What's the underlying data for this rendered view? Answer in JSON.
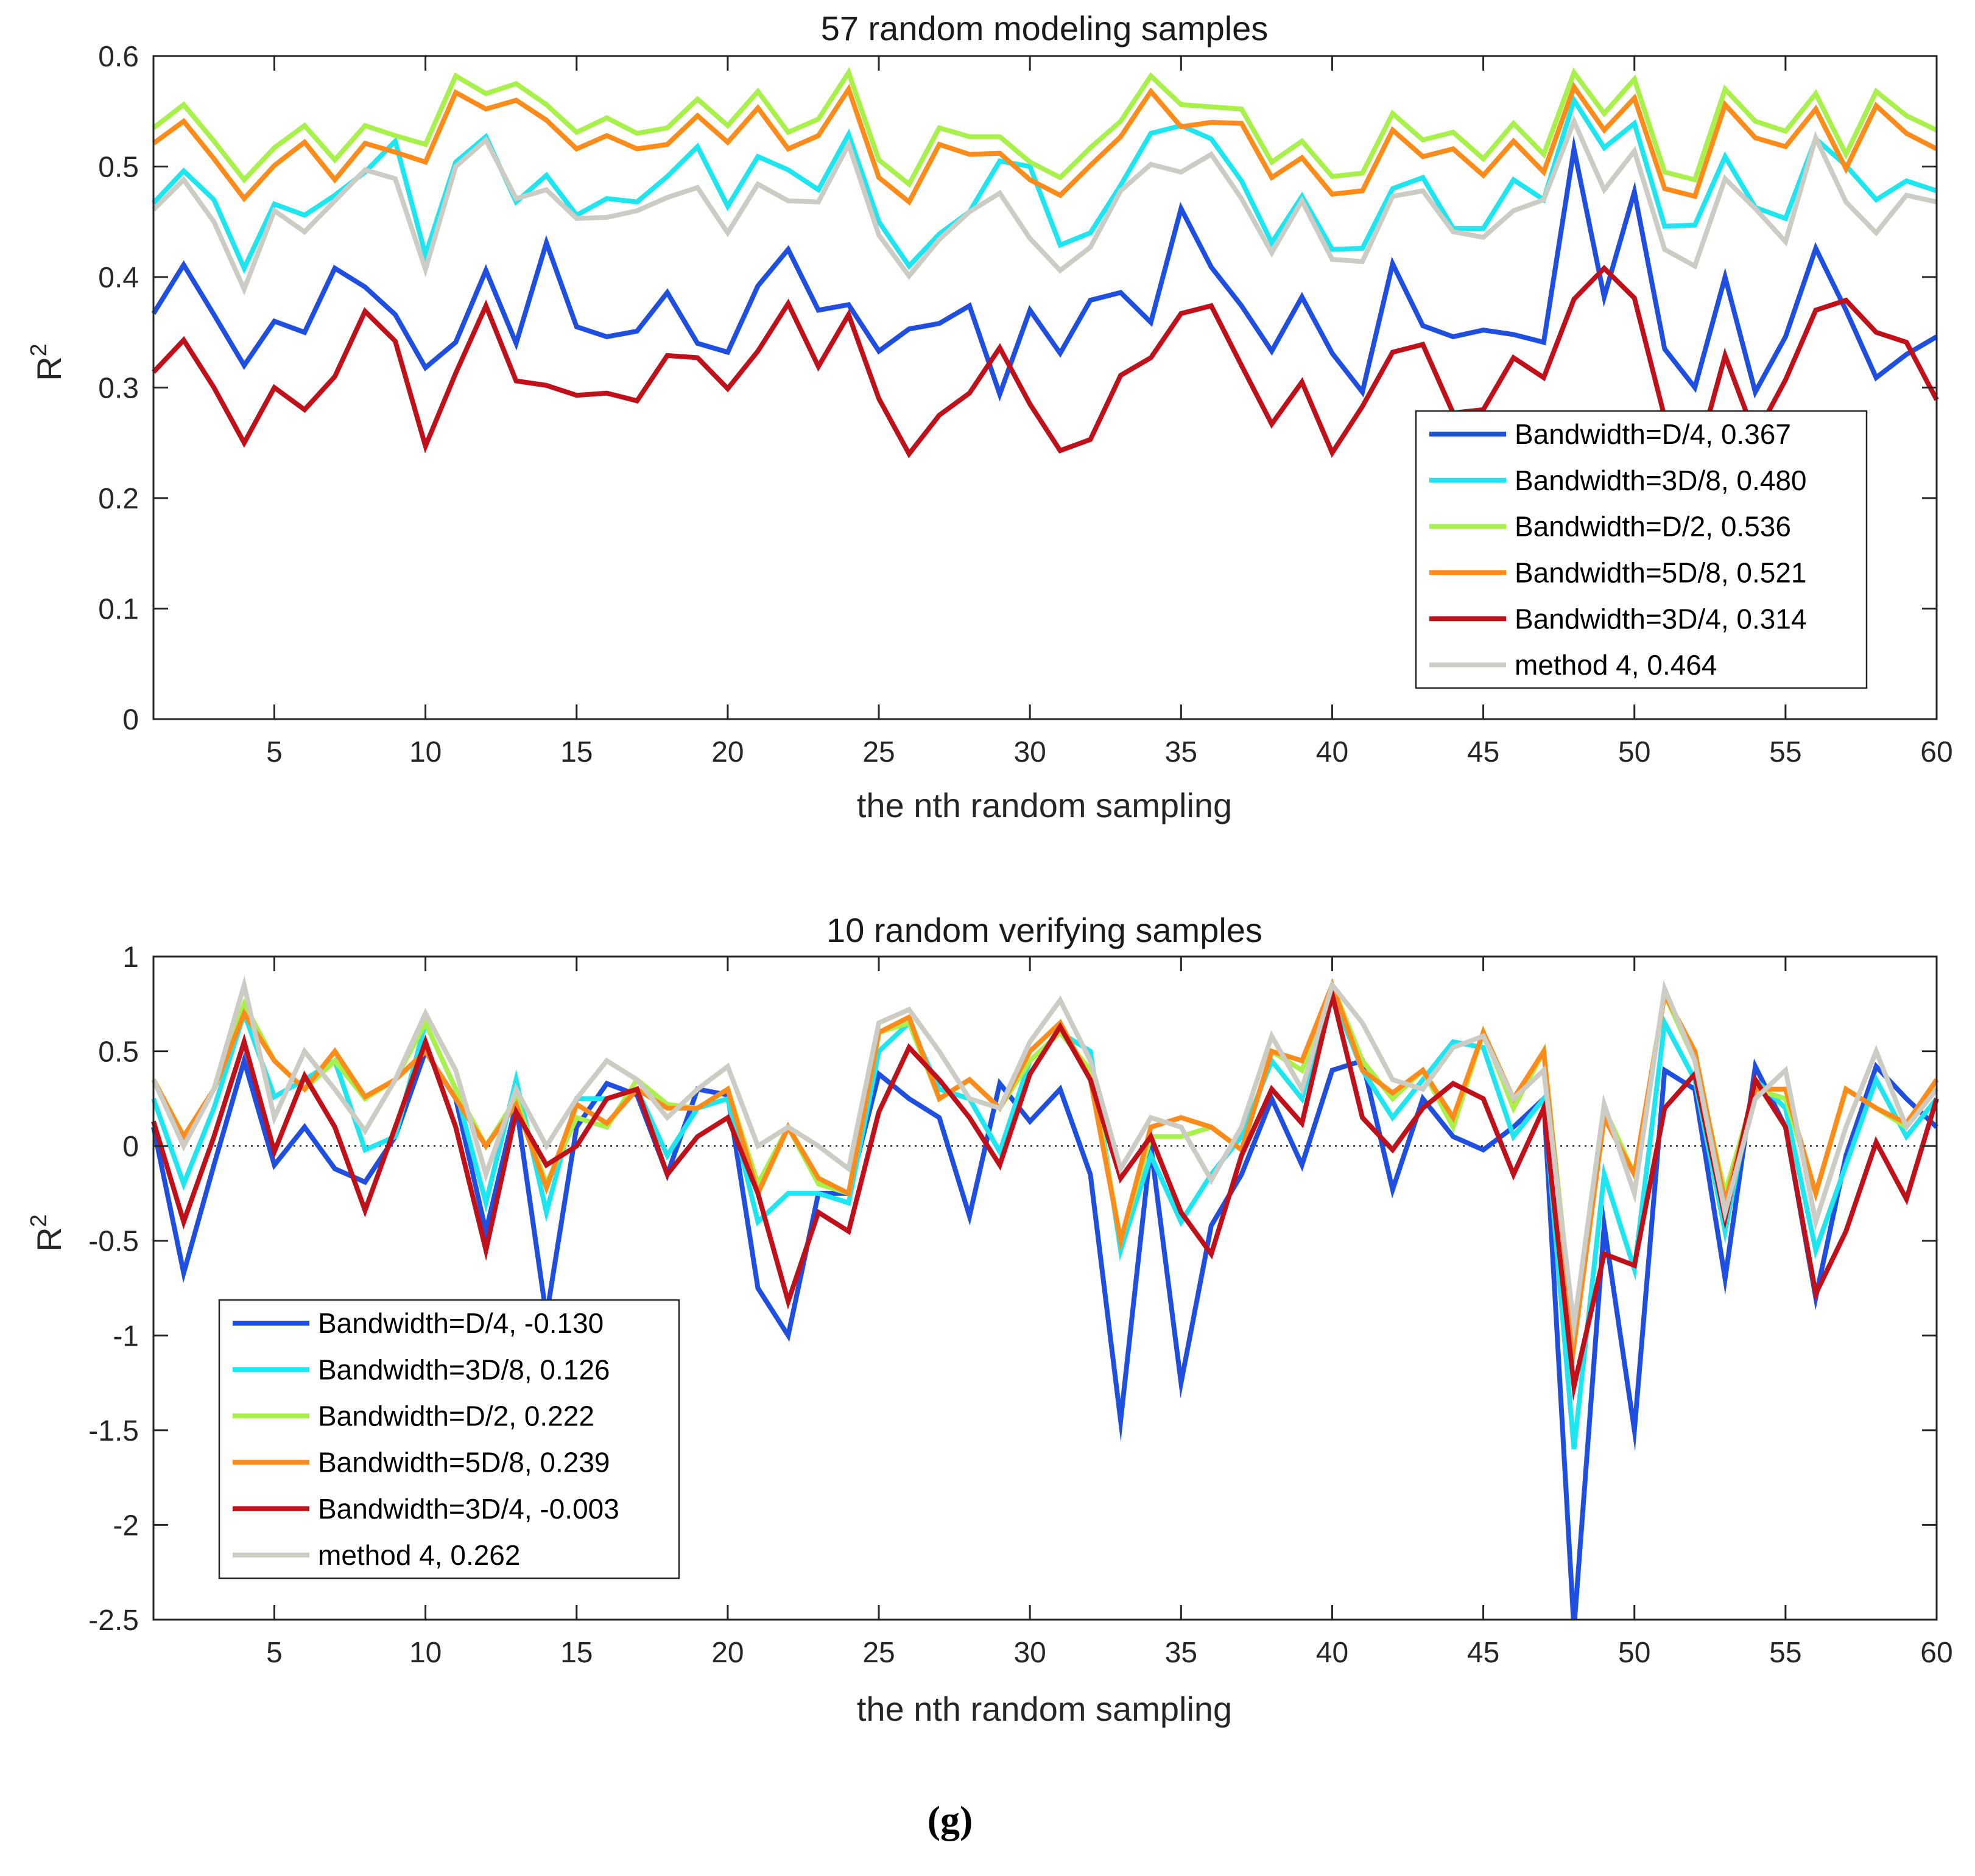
{
  "caption": "(g)",
  "chart_data": [
    {
      "type": "line",
      "title": "57 random modeling samples",
      "xlabel": "the nth random sampling",
      "ylabel": "R",
      "ylabel_sup": "2",
      "xlim": [
        1,
        60
      ],
      "ylim": [
        0,
        0.6
      ],
      "xticks": [
        5,
        10,
        15,
        20,
        25,
        30,
        35,
        40,
        45,
        50,
        55,
        60
      ],
      "yticks": [
        0,
        0.1,
        0.2,
        0.3,
        0.4,
        0.5,
        0.6
      ],
      "grid": false,
      "zero_line": false,
      "legend_position": "bottom-right",
      "series": [
        {
          "name": "Bandwidth=D/4, 0.367",
          "color": "#1f4fe0",
          "values": [
            0.367,
            0.411,
            0.366,
            0.32,
            0.36,
            0.35,
            0.408,
            0.391,
            0.366,
            0.318,
            0.341,
            0.406,
            0.34,
            0.431,
            0.355,
            0.346,
            0.351,
            0.386,
            0.34,
            0.332,
            0.392,
            0.425,
            0.37,
            0.375,
            0.333,
            0.353,
            0.358,
            0.374,
            0.294,
            0.37,
            0.331,
            0.379,
            0.386,
            0.359,
            0.462,
            0.409,
            0.374,
            0.333,
            0.382,
            0.331,
            0.296,
            0.412,
            0.356,
            0.346,
            0.352,
            0.348,
            0.341,
            0.516,
            0.382,
            0.477,
            0.335,
            0.3,
            0.4,
            0.296,
            0.346,
            0.426,
            0.37,
            0.309,
            0.33,
            0.346
          ]
        },
        {
          "name": "Bandwidth=3D/8, 0.480",
          "color": "#1ee6f0",
          "values": [
            0.467,
            0.496,
            0.47,
            0.408,
            0.466,
            0.456,
            0.474,
            0.495,
            0.523,
            0.42,
            0.504,
            0.527,
            0.468,
            0.492,
            0.456,
            0.471,
            0.468,
            0.491,
            0.518,
            0.464,
            0.509,
            0.497,
            0.479,
            0.529,
            0.45,
            0.41,
            0.439,
            0.459,
            0.505,
            0.5,
            0.429,
            0.44,
            0.483,
            0.53,
            0.537,
            0.525,
            0.487,
            0.431,
            0.473,
            0.425,
            0.426,
            0.48,
            0.49,
            0.444,
            0.444,
            0.488,
            0.47,
            0.56,
            0.517,
            0.539,
            0.446,
            0.447,
            0.509,
            0.463,
            0.453,
            0.525,
            0.501,
            0.47,
            0.487,
            0.478
          ]
        },
        {
          "name": "Bandwidth=D/2, 0.536",
          "color": "#a8f04a",
          "values": [
            0.535,
            0.556,
            0.523,
            0.488,
            0.517,
            0.537,
            0.506,
            0.537,
            0.528,
            0.52,
            0.582,
            0.566,
            0.575,
            0.556,
            0.531,
            0.544,
            0.53,
            0.535,
            0.561,
            0.537,
            0.568,
            0.531,
            0.543,
            0.585,
            0.506,
            0.484,
            0.535,
            0.527,
            0.527,
            0.504,
            0.49,
            0.517,
            0.541,
            0.582,
            0.556,
            0.554,
            0.552,
            0.504,
            0.523,
            0.491,
            0.494,
            0.548,
            0.524,
            0.531,
            0.507,
            0.539,
            0.511,
            0.585,
            0.548,
            0.579,
            0.495,
            0.488,
            0.57,
            0.541,
            0.532,
            0.566,
            0.511,
            0.568,
            0.546,
            0.533
          ]
        },
        {
          "name": "Bandwidth=5D/8, 0.521",
          "color": "#ff8c1a",
          "values": [
            0.521,
            0.541,
            0.507,
            0.471,
            0.501,
            0.522,
            0.488,
            0.521,
            0.513,
            0.504,
            0.567,
            0.552,
            0.56,
            0.542,
            0.516,
            0.528,
            0.516,
            0.52,
            0.546,
            0.522,
            0.553,
            0.516,
            0.528,
            0.57,
            0.49,
            0.468,
            0.52,
            0.511,
            0.512,
            0.488,
            0.474,
            0.501,
            0.527,
            0.568,
            0.536,
            0.54,
            0.539,
            0.49,
            0.508,
            0.475,
            0.478,
            0.533,
            0.509,
            0.516,
            0.492,
            0.523,
            0.495,
            0.572,
            0.533,
            0.562,
            0.48,
            0.473,
            0.556,
            0.526,
            0.518,
            0.552,
            0.498,
            0.555,
            0.53,
            0.516
          ]
        },
        {
          "name": "Bandwidth=3D/4, 0.314",
          "color": "#c0101a",
          "values": [
            0.314,
            0.343,
            0.3,
            0.25,
            0.3,
            0.28,
            0.31,
            0.369,
            0.342,
            0.247,
            0.313,
            0.374,
            0.306,
            0.302,
            0.293,
            0.295,
            0.288,
            0.329,
            0.327,
            0.299,
            0.333,
            0.376,
            0.319,
            0.366,
            0.29,
            0.24,
            0.275,
            0.295,
            0.336,
            0.285,
            0.243,
            0.253,
            0.311,
            0.327,
            0.367,
            0.374,
            0.32,
            0.267,
            0.305,
            0.241,
            0.283,
            0.332,
            0.339,
            0.277,
            0.28,
            0.327,
            0.309,
            0.38,
            0.408,
            0.381,
            0.273,
            0.229,
            0.329,
            0.256,
            0.307,
            0.37,
            0.379,
            0.35,
            0.341,
            0.289
          ]
        },
        {
          "name": "method 4, 0.464",
          "color": "#cdccc4",
          "values": [
            0.461,
            0.488,
            0.45,
            0.389,
            0.46,
            0.441,
            0.469,
            0.497,
            0.489,
            0.407,
            0.5,
            0.524,
            0.471,
            0.479,
            0.453,
            0.454,
            0.46,
            0.472,
            0.481,
            0.44,
            0.484,
            0.469,
            0.468,
            0.52,
            0.438,
            0.401,
            0.434,
            0.459,
            0.476,
            0.435,
            0.406,
            0.427,
            0.478,
            0.502,
            0.495,
            0.511,
            0.471,
            0.422,
            0.469,
            0.416,
            0.414,
            0.473,
            0.478,
            0.441,
            0.436,
            0.46,
            0.47,
            0.541,
            0.479,
            0.514,
            0.425,
            0.41,
            0.489,
            0.462,
            0.432,
            0.526,
            0.468,
            0.44,
            0.474,
            0.468
          ]
        }
      ]
    },
    {
      "type": "line",
      "title": "10 random verifying samples",
      "xlabel": "the nth random sampling",
      "ylabel": "R",
      "ylabel_sup": "2",
      "xlim": [
        1,
        60
      ],
      "ylim": [
        -2.5,
        1
      ],
      "xticks": [
        5,
        10,
        15,
        20,
        25,
        30,
        35,
        40,
        45,
        50,
        55,
        60
      ],
      "yticks": [
        -2.5,
        -2,
        -1.5,
        -1,
        -0.5,
        0,
        0.5,
        1
      ],
      "grid": false,
      "zero_line": true,
      "legend_position": "bottom-left",
      "series": [
        {
          "name": "Bandwidth=D/4, -0.130",
          "color": "#1f4fe0",
          "values": [
            0.1,
            -0.67,
            -0.1,
            0.45,
            -0.1,
            0.1,
            -0.12,
            -0.19,
            0.05,
            0.5,
            0.25,
            -0.45,
            0.22,
            -0.9,
            0.1,
            0.33,
            0.27,
            -0.15,
            0.3,
            0.27,
            -0.75,
            -1.0,
            -0.25,
            -0.25,
            0.38,
            0.25,
            0.15,
            -0.37,
            0.33,
            0.13,
            0.3,
            -0.15,
            -1.45,
            0.0,
            -1.25,
            -0.42,
            -0.15,
            0.25,
            -0.1,
            0.4,
            0.45,
            -0.23,
            0.25,
            0.05,
            -0.02,
            0.1,
            0.25,
            -2.55,
            -0.42,
            -1.5,
            0.4,
            0.3,
            -0.7,
            0.42,
            0.1,
            -0.8,
            -0.05,
            0.42,
            0.25,
            0.1
          ]
        },
        {
          "name": "Bandwidth=3D/8, 0.126",
          "color": "#1ee6f0",
          "values": [
            0.25,
            -0.2,
            0.2,
            0.7,
            0.26,
            0.35,
            0.45,
            -0.02,
            0.05,
            0.65,
            0.3,
            -0.3,
            0.35,
            -0.35,
            0.25,
            0.25,
            0.3,
            -0.05,
            0.2,
            0.25,
            -0.4,
            -0.25,
            -0.25,
            -0.3,
            0.5,
            0.65,
            0.3,
            0.25,
            -0.03,
            0.45,
            0.6,
            0.5,
            -0.55,
            -0.05,
            -0.4,
            -0.15,
            0.05,
            0.45,
            0.25,
            0.8,
            0.4,
            0.15,
            0.35,
            0.55,
            0.52,
            0.05,
            0.25,
            -1.6,
            -0.15,
            -0.65,
            0.65,
            0.35,
            -0.45,
            0.35,
            0.2,
            -0.55,
            -0.1,
            0.35,
            0.05,
            0.25
          ]
        },
        {
          "name": "Bandwidth=D/2, 0.222",
          "color": "#a8f04a",
          "values": [
            0.35,
            0.05,
            0.3,
            0.75,
            0.45,
            0.3,
            0.45,
            0.25,
            0.35,
            0.65,
            0.3,
            0.0,
            0.25,
            -0.2,
            0.15,
            0.1,
            0.35,
            0.22,
            0.2,
            0.3,
            -0.2,
            0.1,
            -0.2,
            -0.25,
            0.6,
            0.65,
            0.25,
            0.35,
            0.2,
            0.45,
            0.6,
            0.4,
            -0.5,
            0.05,
            0.05,
            0.1,
            -0.02,
            0.5,
            0.4,
            0.85,
            0.45,
            0.25,
            0.4,
            0.1,
            0.6,
            0.2,
            0.5,
            -1.0,
            0.2,
            -0.15,
            0.8,
            0.45,
            -0.25,
            0.3,
            0.25,
            -0.25,
            0.3,
            0.2,
            0.1,
            0.35
          ]
        },
        {
          "name": "Bandwidth=5D/8, 0.239",
          "color": "#ff8c1a",
          "values": [
            0.35,
            0.05,
            0.3,
            0.7,
            0.45,
            0.3,
            0.5,
            0.26,
            0.35,
            0.5,
            0.25,
            0.0,
            0.22,
            -0.22,
            0.22,
            0.12,
            0.3,
            0.2,
            0.2,
            0.3,
            -0.25,
            0.1,
            -0.17,
            -0.25,
            0.6,
            0.68,
            0.25,
            0.35,
            0.2,
            0.5,
            0.65,
            0.35,
            -0.5,
            0.1,
            0.15,
            0.1,
            -0.02,
            0.5,
            0.45,
            0.85,
            0.4,
            0.28,
            0.4,
            0.15,
            0.6,
            0.25,
            0.5,
            -1.05,
            0.15,
            -0.15,
            0.8,
            0.5,
            -0.3,
            0.3,
            0.3,
            -0.25,
            0.3,
            0.2,
            0.12,
            0.35
          ]
        },
        {
          "name": "Bandwidth=3D/4, -0.003",
          "color": "#c0101a",
          "values": [
            0.13,
            -0.4,
            0.05,
            0.55,
            -0.03,
            0.37,
            0.1,
            -0.34,
            0.1,
            0.55,
            0.1,
            -0.55,
            0.18,
            -0.1,
            0.0,
            0.25,
            0.3,
            -0.15,
            0.05,
            0.15,
            -0.25,
            -0.82,
            -0.35,
            -0.45,
            0.18,
            0.52,
            0.35,
            0.15,
            -0.1,
            0.38,
            0.63,
            0.35,
            -0.17,
            0.05,
            -0.35,
            -0.57,
            -0.05,
            0.3,
            0.12,
            0.8,
            0.15,
            -0.02,
            0.2,
            0.33,
            0.25,
            -0.15,
            0.2,
            -1.27,
            -0.57,
            -0.63,
            0.2,
            0.38,
            -0.38,
            0.35,
            0.1,
            -0.78,
            -0.45,
            0.02,
            -0.28,
            0.25
          ]
        },
        {
          "name": "method 4, 0.262",
          "color": "#cdccc4",
          "values": [
            0.35,
            0.0,
            0.3,
            0.85,
            0.15,
            0.5,
            0.3,
            0.08,
            0.35,
            0.7,
            0.4,
            -0.15,
            0.3,
            0.0,
            0.25,
            0.45,
            0.35,
            0.15,
            0.3,
            0.42,
            0.0,
            0.1,
            0.0,
            -0.12,
            0.65,
            0.72,
            0.5,
            0.25,
            0.2,
            0.55,
            0.77,
            0.45,
            -0.12,
            0.15,
            0.1,
            -0.18,
            0.1,
            0.58,
            0.3,
            0.85,
            0.65,
            0.35,
            0.3,
            0.52,
            0.58,
            0.25,
            0.4,
            -0.95,
            0.22,
            -0.25,
            0.83,
            0.45,
            -0.35,
            0.25,
            0.4,
            -0.4,
            0.1,
            0.5,
            0.1,
            0.3
          ]
        }
      ]
    }
  ]
}
